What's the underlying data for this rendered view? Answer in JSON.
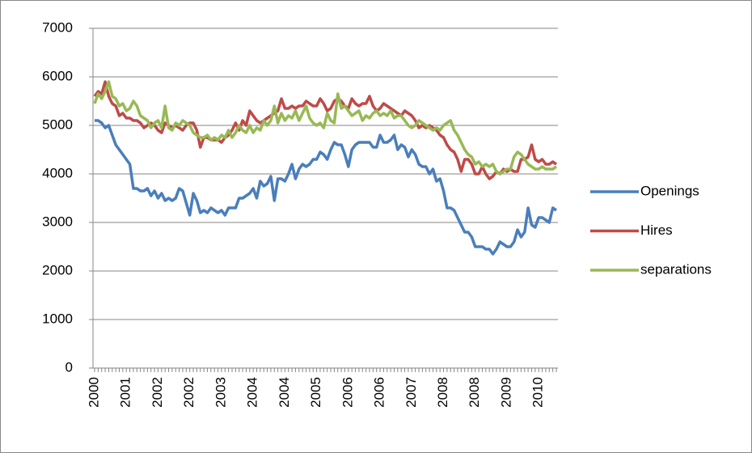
{
  "chart_data": {
    "type": "line",
    "categories": [
      "2000",
      null,
      null,
      null,
      null,
      null,
      null,
      null,
      null,
      "2001",
      null,
      null,
      null,
      null,
      null,
      null,
      null,
      null,
      "2002",
      null,
      null,
      null,
      null,
      null,
      null,
      null,
      null,
      "2002",
      null,
      null,
      null,
      null,
      null,
      null,
      null,
      null,
      "2003",
      null,
      null,
      null,
      null,
      null,
      null,
      null,
      null,
      "2004",
      null,
      null,
      null,
      null,
      null,
      null,
      null,
      null,
      "2004",
      null,
      null,
      null,
      null,
      null,
      null,
      null,
      null,
      "2005",
      null,
      null,
      null,
      null,
      null,
      null,
      null,
      null,
      "2006",
      null,
      null,
      null,
      null,
      null,
      null,
      null,
      null,
      "2006",
      null,
      null,
      null,
      null,
      null,
      null,
      null,
      null,
      "2007",
      null,
      null,
      null,
      null,
      null,
      null,
      null,
      null,
      "2008",
      null,
      null,
      null,
      null,
      null,
      null,
      null,
      null,
      "2008",
      null,
      null,
      null,
      null,
      null,
      null,
      null,
      null,
      "2009",
      null,
      null,
      null,
      null,
      null,
      null,
      null,
      null,
      "2010",
      null,
      null,
      null,
      null,
      null
    ],
    "series": [
      {
        "name": "Openings",
        "color": "#4a7ebb",
        "values": [
          5100,
          5100,
          5050,
          4950,
          5000,
          4800,
          4600,
          4500,
          4400,
          4300,
          4200,
          3700,
          3700,
          3650,
          3650,
          3700,
          3550,
          3650,
          3500,
          3600,
          3450,
          3500,
          3450,
          3500,
          3700,
          3650,
          3400,
          3150,
          3600,
          3450,
          3200,
          3250,
          3200,
          3300,
          3250,
          3200,
          3250,
          3150,
          3300,
          3300,
          3300,
          3500,
          3500,
          3550,
          3600,
          3700,
          3500,
          3850,
          3750,
          3800,
          3950,
          3450,
          3900,
          3900,
          3850,
          4000,
          4200,
          3900,
          4100,
          4200,
          4150,
          4200,
          4300,
          4300,
          4450,
          4400,
          4300,
          4500,
          4650,
          4600,
          4600,
          4400,
          4150,
          4500,
          4600,
          4650,
          4650,
          4650,
          4650,
          4550,
          4550,
          4800,
          4650,
          4650,
          4700,
          4800,
          4500,
          4600,
          4550,
          4350,
          4500,
          4400,
          4200,
          4150,
          4150,
          4000,
          4100,
          3850,
          3900,
          3650,
          3300,
          3300,
          3250,
          3100,
          2950,
          2800,
          2800,
          2700,
          2500,
          2500,
          2500,
          2450,
          2450,
          2350,
          2450,
          2600,
          2550,
          2500,
          2500,
          2600,
          2850,
          2700,
          2800,
          3300,
          2950,
          2900,
          3100,
          3100,
          3050,
          3000,
          3300,
          3250
        ]
      },
      {
        "name": "Hires",
        "color": "#be4b48",
        "values": [
          5600,
          5700,
          5650,
          5900,
          5600,
          5450,
          5400,
          5200,
          5250,
          5150,
          5150,
          5100,
          5100,
          5050,
          4950,
          5000,
          5050,
          5000,
          4900,
          4850,
          5050,
          5000,
          4950,
          5000,
          4950,
          4900,
          5000,
          5050,
          5050,
          4900,
          4550,
          4750,
          4750,
          4700,
          4700,
          4700,
          4650,
          4750,
          4800,
          4900,
          5050,
          4900,
          5100,
          5000,
          5300,
          5200,
          5100,
          5050,
          5100,
          5150,
          5200,
          5250,
          5300,
          5550,
          5350,
          5350,
          5400,
          5350,
          5400,
          5400,
          5500,
          5450,
          5400,
          5400,
          5550,
          5450,
          5300,
          5350,
          5500,
          5550,
          5500,
          5400,
          5350,
          5550,
          5450,
          5400,
          5450,
          5450,
          5600,
          5400,
          5300,
          5350,
          5450,
          5400,
          5350,
          5300,
          5250,
          5200,
          5300,
          5250,
          5200,
          5100,
          4950,
          5000,
          4950,
          5000,
          4950,
          4900,
          4800,
          4750,
          4600,
          4500,
          4450,
          4300,
          4050,
          4300,
          4300,
          4200,
          4000,
          4000,
          4150,
          4000,
          3900,
          3950,
          4050,
          4000,
          4100,
          4050,
          4100,
          4050,
          4050,
          4300,
          4300,
          4350,
          4600,
          4300,
          4250,
          4300,
          4200,
          4200,
          4250,
          4200
        ]
      },
      {
        "name": "separations",
        "color": "#98b954",
        "values": [
          5450,
          5650,
          5550,
          5700,
          5900,
          5600,
          5550,
          5400,
          5450,
          5300,
          5350,
          5500,
          5400,
          5200,
          5150,
          5100,
          4950,
          5050,
          5100,
          4950,
          5400,
          4950,
          4900,
          5050,
          5000,
          5100,
          5050,
          5000,
          4850,
          4800,
          4750,
          4750,
          4800,
          4700,
          4750,
          4700,
          4800,
          4750,
          4900,
          4750,
          4850,
          5000,
          4900,
          4850,
          5000,
          4850,
          4950,
          4900,
          5100,
          5000,
          5100,
          5400,
          5050,
          5250,
          5100,
          5200,
          5150,
          5300,
          5100,
          5250,
          5400,
          5150,
          5050,
          5000,
          5050,
          4950,
          5250,
          5100,
          5050,
          5650,
          5350,
          5400,
          5300,
          5200,
          5250,
          5300,
          5100,
          5200,
          5150,
          5250,
          5300,
          5200,
          5250,
          5200,
          5300,
          5150,
          5200,
          5200,
          5100,
          5000,
          4950,
          5000,
          5100,
          5050,
          5000,
          4950,
          4900,
          4950,
          4900,
          5000,
          5050,
          5100,
          4900,
          4800,
          4650,
          4500,
          4400,
          4350,
          4200,
          4250,
          4150,
          4200,
          4150,
          4200,
          4050,
          4000,
          4050,
          4100,
          4100,
          4350,
          4450,
          4400,
          4300,
          4200,
          4150,
          4100,
          4100,
          4150,
          4100,
          4100,
          4100,
          4150
        ]
      }
    ],
    "ylim": [
      0,
      7000
    ],
    "yticks": [
      0,
      1000,
      2000,
      3000,
      4000,
      5000,
      6000,
      7000
    ],
    "grid": true,
    "legend": "right"
  }
}
